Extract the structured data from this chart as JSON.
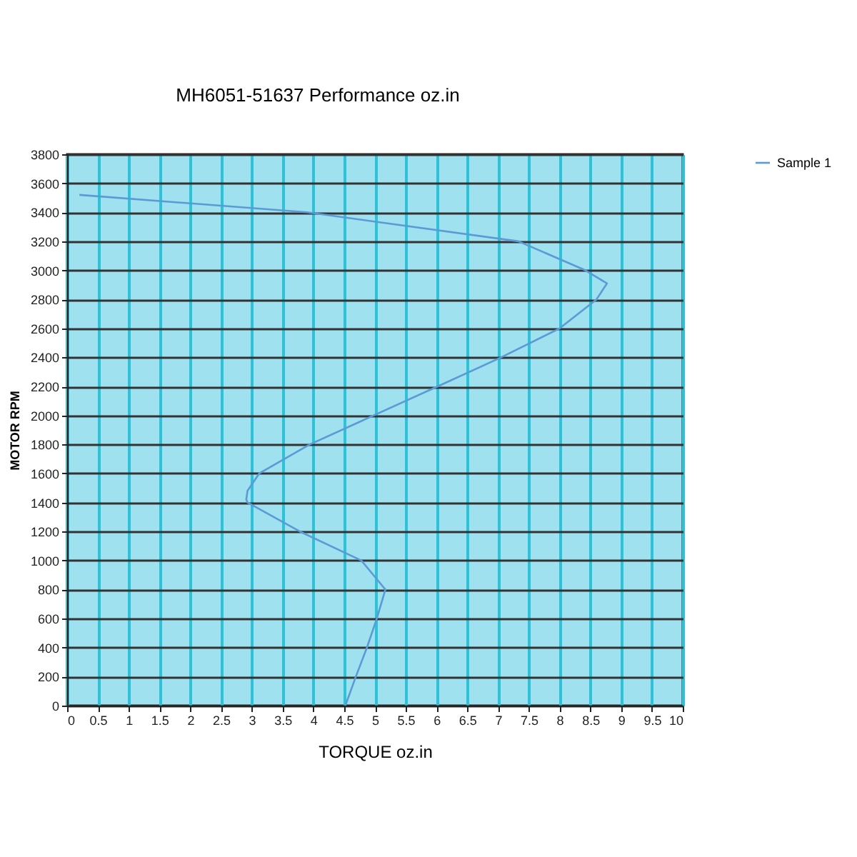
{
  "chart_data": {
    "type": "line",
    "title": "MH6051-51637  Performance oz.in",
    "xlabel": "TORQUE  oz.in",
    "ylabel": "MOTOR RPM",
    "xlim": [
      0,
      10
    ],
    "ylim": [
      0,
      3800
    ],
    "xticks": [
      0,
      {
        "value": 0.5,
        "label": "0.5"
      },
      1,
      {
        "value": 1.5,
        "label": "1.5"
      },
      2,
      {
        "value": 2.5,
        "label": "2.5"
      },
      3,
      {
        "value": 3.5,
        "label": "3.5"
      },
      4,
      {
        "value": 4.5,
        "label": "4.5"
      },
      5,
      {
        "value": 5.5,
        "label": "5.5"
      },
      6,
      {
        "value": 6.5,
        "label": "6.5"
      },
      7,
      {
        "value": 7.5,
        "label": "7.5"
      },
      8,
      {
        "value": 8.5,
        "label": "8.5"
      },
      9,
      {
        "value": 9.5,
        "label": "9.5"
      },
      10
    ],
    "yticks": [
      0,
      200,
      400,
      600,
      800,
      1000,
      1200,
      1400,
      1600,
      1800,
      2000,
      2200,
      2400,
      2600,
      2800,
      3000,
      3200,
      3400,
      3600,
      3800
    ],
    "grid": true,
    "legend": "right",
    "marker": "none",
    "line_style": "solid",
    "series": [
      {
        "name": "Sample 1",
        "color": "#5b9bd5",
        "x": [
          0.2,
          3.9,
          7.33,
          8.42,
          8.77,
          8.6,
          8.0,
          7.05,
          6.02,
          4.98,
          3.94,
          3.12,
          2.93,
          2.91,
          2.93,
          3.78,
          4.78,
          5.17,
          5.03,
          4.87,
          4.69,
          4.52
        ],
        "values": [
          3520,
          3400,
          3200,
          3000,
          2910,
          2800,
          2600,
          2400,
          2200,
          2000,
          1800,
          1600,
          1480,
          1420,
          1400,
          1200,
          1000,
          800,
          600,
          400,
          200,
          0
        ]
      }
    ]
  }
}
